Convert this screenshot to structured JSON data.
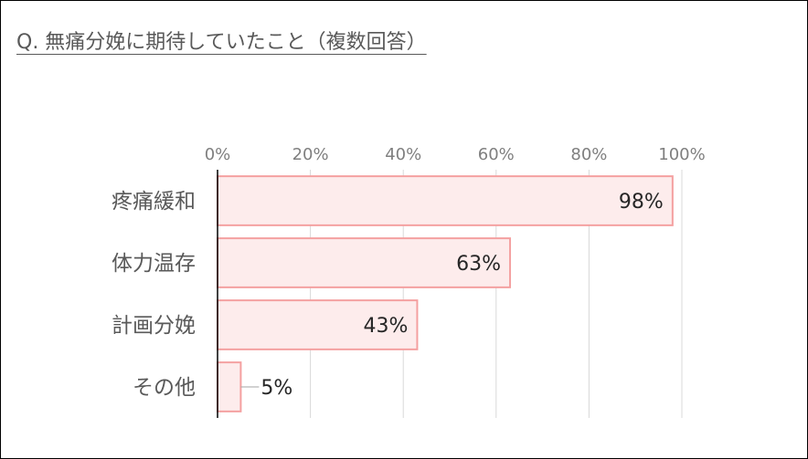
{
  "chart_data": {
    "type": "bar",
    "orientation": "horizontal",
    "title": "Q. 無痛分娩に期待していたこと（複数回答）",
    "categories": [
      "疼痛緩和",
      "体力温存",
      "計画分娩",
      "その他"
    ],
    "values": [
      98,
      63,
      43,
      5
    ],
    "data_labels": [
      "98%",
      "63%",
      "43%",
      "5%"
    ],
    "xlim": [
      0,
      100
    ],
    "x_ticks": [
      0,
      20,
      40,
      60,
      80,
      100
    ],
    "x_tick_labels": [
      "0%",
      "20%",
      "40%",
      "60%",
      "80%",
      "100%"
    ],
    "axis_position": "top",
    "grid": true,
    "legend": "none",
    "colors": {
      "bar_fill": "#fdecec",
      "bar_stroke": "#f4a0a0",
      "grid": "#d9d9d9",
      "axis": "#000000",
      "leader": "#a6a6a6"
    }
  }
}
